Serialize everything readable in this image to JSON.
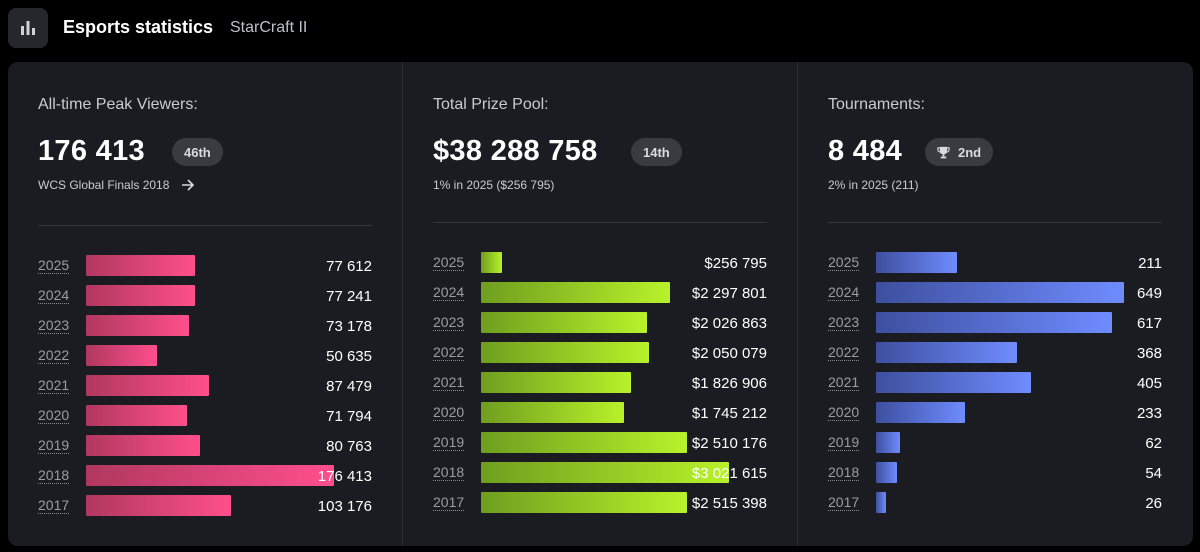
{
  "header": {
    "title": "Esports statistics",
    "subtitle": "StarCraft II",
    "icon": "bar-chart-icon"
  },
  "panels": [
    {
      "label": "All-time Peak Viewers:",
      "value": "176 413",
      "rank": "46th",
      "sub": "WCS Global Finals 2018",
      "sub_icon": "arrow-right-icon"
    },
    {
      "label": "Total Prize Pool:",
      "value": "$38 288 758",
      "rank": "14th",
      "sub": "1% in 2025 ($256 795)"
    },
    {
      "label": "Tournaments:",
      "value": "8 484",
      "rank": "2nd",
      "rank_icon": "trophy-icon",
      "sub": "2% in 2025 (211)"
    }
  ],
  "chart_data": [
    {
      "type": "bar",
      "orientation": "horizontal",
      "categories": [
        "2025",
        "2024",
        "2023",
        "2022",
        "2021",
        "2020",
        "2019",
        "2018",
        "2017"
      ],
      "values": [
        77612,
        77241,
        73178,
        50635,
        87479,
        71794,
        80763,
        176413,
        103176
      ],
      "labels": [
        "77 612",
        "77 241",
        "73 178",
        "50 635",
        "87 479",
        "71 794",
        "80 763",
        "176 413",
        "103 176"
      ],
      "colors": [
        "#b0385f",
        "#ff4f8b"
      ]
    },
    {
      "type": "bar",
      "orientation": "horizontal",
      "categories": [
        "2025",
        "2024",
        "2023",
        "2022",
        "2021",
        "2020",
        "2019",
        "2018",
        "2017"
      ],
      "values": [
        256795,
        2297801,
        2026863,
        2050079,
        1826906,
        1745212,
        2510176,
        3021615,
        2515398
      ],
      "labels": [
        "$256 795",
        "$2 297 801",
        "$2 026 863",
        "$2 050 079",
        "$1 826 906",
        "$1 745 212",
        "$2 510 176",
        "$3 021 615",
        "$2 515 398"
      ],
      "colors": [
        "#6f9e1f",
        "#b8f22a"
      ]
    },
    {
      "type": "bar",
      "orientation": "horizontal",
      "categories": [
        "2025",
        "2024",
        "2023",
        "2022",
        "2021",
        "2020",
        "2019",
        "2018",
        "2017"
      ],
      "values": [
        211,
        649,
        617,
        368,
        405,
        233,
        62,
        54,
        26
      ],
      "labels": [
        "211",
        "649",
        "617",
        "368",
        "405",
        "233",
        "62",
        "54",
        "26"
      ],
      "colors": [
        "#3d4f9e",
        "#6f8cff"
      ]
    }
  ]
}
